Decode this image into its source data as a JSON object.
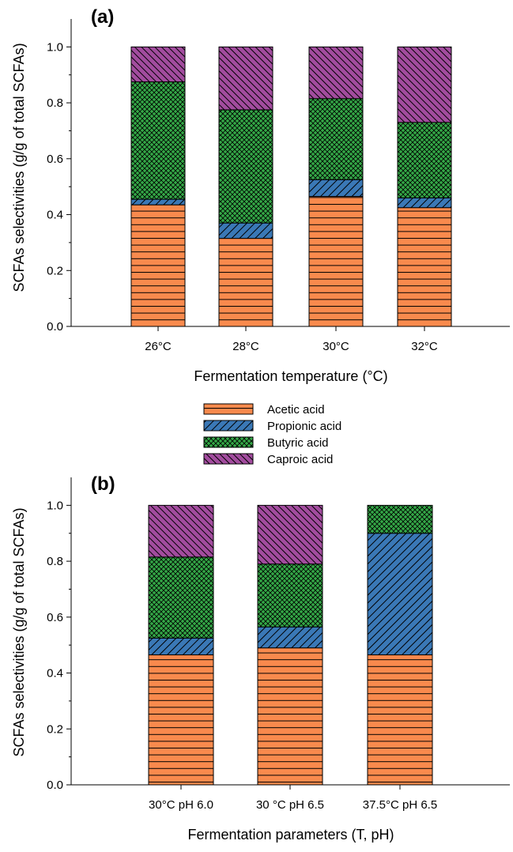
{
  "series_colors": {
    "Acetic acid": "#f98a4d",
    "Propionic acid": "#3a78b6",
    "Butyric acid": "#34a847",
    "Caproic acid": "#a24c9e"
  },
  "legend": [
    "Acetic acid",
    "Propionic acid",
    "Butyric acid",
    "Caproic acid"
  ],
  "chart_data": [
    {
      "type": "bar",
      "stacked": true,
      "panel_label": "(a)",
      "xlabel": "Fermentation temperature (°C)",
      "ylabel": "SCFAs selectivities (g/g of total SCFAs)",
      "ylim": [
        0,
        1.1
      ],
      "yticks": [
        "0.0",
        "0.2",
        "0.4",
        "0.6",
        "0.8",
        "1.0"
      ],
      "categories": [
        "26°C",
        "28°C",
        "30°C",
        "32°C"
      ],
      "series": [
        {
          "name": "Acetic acid",
          "values": [
            0.435,
            0.315,
            0.465,
            0.425
          ]
        },
        {
          "name": "Propionic acid",
          "values": [
            0.02,
            0.055,
            0.06,
            0.035
          ]
        },
        {
          "name": "Butyric acid",
          "values": [
            0.42,
            0.405,
            0.29,
            0.27
          ]
        },
        {
          "name": "Caproic acid",
          "values": [
            0.125,
            0.225,
            0.185,
            0.27
          ]
        }
      ]
    },
    {
      "type": "bar",
      "stacked": true,
      "panel_label": "(b)",
      "xlabel": "Fermentation parameters (T, pH)",
      "ylabel": "SCFAs selectivities (g/g of total SCFAs)",
      "ylim": [
        0,
        1.1
      ],
      "yticks": [
        "0.0",
        "0.2",
        "0.4",
        "0.6",
        "0.8",
        "1.0"
      ],
      "categories": [
        "30°C pH 6.0",
        "30 °C pH 6.5",
        "37.5°C pH 6.5"
      ],
      "series": [
        {
          "name": "Acetic acid",
          "values": [
            0.465,
            0.49,
            0.465
          ]
        },
        {
          "name": "Propionic acid",
          "values": [
            0.06,
            0.075,
            0.435
          ]
        },
        {
          "name": "Butyric acid",
          "values": [
            0.29,
            0.225,
            0.1
          ]
        },
        {
          "name": "Caproic acid",
          "values": [
            0.185,
            0.21,
            0.0
          ]
        }
      ]
    }
  ]
}
